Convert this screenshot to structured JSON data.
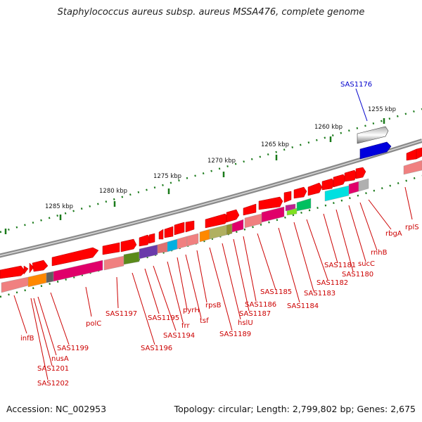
{
  "title": "Staphylococcus aureus subsp. aureus MSSA476, complete genome",
  "footer": {
    "accession": "Accession: NC_002953",
    "topology": "Topology: circular; Length: 2,799,802 bp; Genes: 2,675"
  },
  "highlight_gene": {
    "name": "SAS1176",
    "color": "#0000cc"
  },
  "kbp_ticks": [
    "1255 kbp",
    "1260 kbp",
    "1265 kbp",
    "1270 kbp",
    "1275 kbp",
    "1280 kbp",
    "1285 kbp"
  ],
  "gene_labels": [
    "infB",
    "SAS1202",
    "SAS1201",
    "nusA",
    "SAS1199",
    "polC",
    "SAS1197",
    "SAS1196",
    "SAS1195",
    "SAS1194",
    "frr",
    "pyrH",
    "tsf",
    "rpsB",
    "SAS1189",
    "hslU",
    "SAS1187",
    "SAS1186",
    "SAS1185",
    "SAS1184",
    "SAS1183",
    "SAS1182",
    "SAS1181",
    "SAS1180",
    "sucC",
    "rnhB",
    "rbgA",
    "rplS"
  ],
  "colors": {
    "forward_gene": "#ff0000",
    "label_red": "#cc0000",
    "backbone": "#888888",
    "highlight": "#0000dd"
  }
}
